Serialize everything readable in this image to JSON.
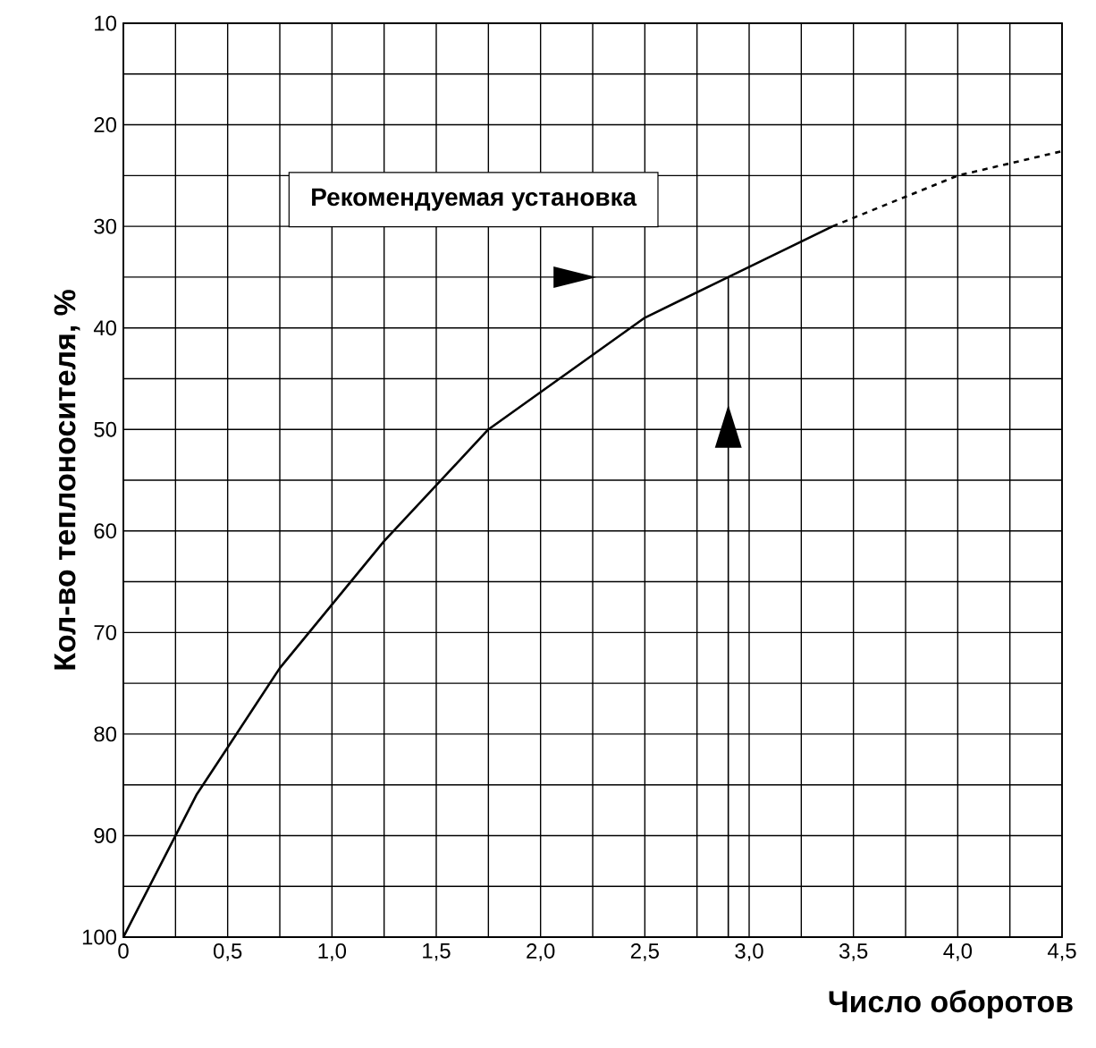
{
  "chart_data": {
    "type": "line",
    "xlabel": "Число оборотов",
    "ylabel": "Кол-во теплоносителя, %",
    "series": [
      {
        "color": "#000000",
        "line_style": "solid",
        "x": [
          0,
          0.35,
          0.75,
          1.25,
          1.75,
          2.5,
          2.9,
          3.4
        ],
        "values": [
          100,
          86,
          73.5,
          61,
          50,
          39,
          35,
          30
        ]
      },
      {
        "color": "#000000",
        "line_style": "dashed",
        "x": [
          3.4,
          4.0,
          4.5
        ],
        "values": [
          30,
          25,
          22.6
        ]
      },
      {
        "color": "#000000",
        "line_style": "solid",
        "x": [
          2.9,
          2.9
        ],
        "values": [
          35,
          100
        ]
      }
    ],
    "annotations": [
      "Рекомендуемая установка"
    ],
    "xlim": [
      0,
      4.5
    ],
    "ylim": [
      100,
      10
    ],
    "xticks": [
      0,
      {
        "value": 0.25,
        "label": null
      },
      {
        "value": 0.5,
        "label": "0,5"
      },
      {
        "value": 0.75,
        "label": null
      },
      {
        "value": 1,
        "label": "1,0"
      },
      {
        "value": 1.25,
        "label": null
      },
      {
        "value": 1.5,
        "label": "1,5"
      },
      {
        "value": 1.75,
        "label": null
      },
      {
        "value": 2,
        "label": "2,0"
      },
      {
        "value": 2.25,
        "label": null
      },
      {
        "value": 2.5,
        "label": "2,5"
      },
      {
        "value": 2.75,
        "label": null
      },
      {
        "value": 3,
        "label": "3,0"
      },
      {
        "value": 3.25,
        "label": null
      },
      {
        "value": 3.5,
        "label": "3,5"
      },
      {
        "value": 3.75,
        "label": null
      },
      {
        "value": 4,
        "label": "4,0"
      },
      {
        "value": 4.25,
        "label": null
      },
      {
        "value": 4.5,
        "label": "4,5"
      }
    ],
    "yticks": [
      10,
      {
        "value": 15,
        "label": null
      },
      20,
      {
        "value": 25,
        "label": null
      },
      30,
      {
        "value": 35,
        "label": null
      },
      40,
      {
        "value": 45,
        "label": null
      },
      50,
      {
        "value": 55,
        "label": null
      },
      60,
      {
        "value": 65,
        "label": null
      },
      70,
      {
        "value": 75,
        "label": null
      },
      80,
      {
        "value": 85,
        "label": null
      },
      90,
      {
        "value": 95,
        "label": null
      },
      100
    ],
    "grid": true,
    "legend": false,
    "marker": "none"
  }
}
